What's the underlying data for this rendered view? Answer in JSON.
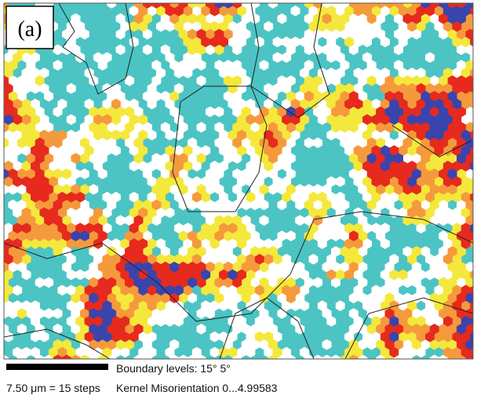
{
  "label": "(a)",
  "scale_bar": {
    "text": "7.50 μm = 15 steps"
  },
  "legend": {
    "boundary": "Boundary levels: 15° 5°",
    "kernel": "Kernel Misorientation 0...4.99583"
  }
}
